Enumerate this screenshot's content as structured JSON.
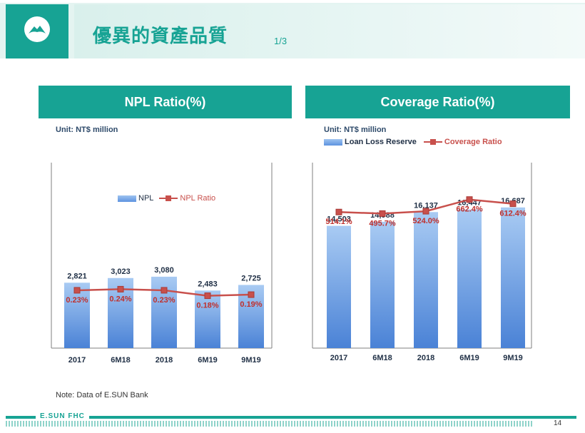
{
  "header": {
    "logo_icon": "mountain-logo-icon",
    "title": "優異的資產品質",
    "title_suffix": "1/3"
  },
  "colors": {
    "brand": "#17a394",
    "bar": "#5d93e0",
    "line": "#c8504c"
  },
  "left_panel": {
    "heading": "NPL Ratio(%)",
    "unit": "Unit: NT$ million",
    "legend_bar": "NPL",
    "legend_line": "NPL Ratio"
  },
  "right_panel": {
    "heading": "Coverage Ratio(%)",
    "unit": "Unit: NT$ million",
    "legend_bar": "Loan Loss Reserve",
    "legend_line": "Coverage Ratio"
  },
  "chart_data": [
    {
      "type": "bar",
      "categories": [
        "2017",
        "6M18",
        "2018",
        "6M19",
        "9M19"
      ],
      "bar_labels": [
        "2,821",
        "3,023",
        "3,080",
        "2,483",
        "2,725"
      ],
      "line_labels": [
        "0.23%",
        "0.24%",
        "0.23%",
        "0.18%",
        "0.19%"
      ],
      "series": [
        {
          "name": "NPL",
          "kind": "bar",
          "values": [
            2821,
            3023,
            3080,
            2483,
            2725
          ]
        },
        {
          "name": "NPL Ratio",
          "kind": "line",
          "values": [
            0.23,
            0.24,
            0.23,
            0.18,
            0.19
          ]
        }
      ],
      "title": "NPL Ratio(%)",
      "bar_ylim": [
        0,
        8000
      ],
      "line_ylim": [
        -0.3,
        1.4
      ],
      "legend": "top-center"
    },
    {
      "type": "bar",
      "categories": [
        "2017",
        "6M18",
        "2018",
        "6M19",
        "9M19"
      ],
      "bar_labels": [
        "14,503",
        "14,988",
        "16,137",
        "16,447",
        "16,687"
      ],
      "line_labels": [
        "514.1%",
        "495.7%",
        "524.0%",
        "662.4%",
        "612.4%"
      ],
      "series": [
        {
          "name": "Loan Loss Reserve",
          "kind": "bar",
          "values": [
            14503,
            14988,
            16137,
            16447,
            16687
          ]
        },
        {
          "name": "Coverage Ratio",
          "kind": "line",
          "values": [
            514.1,
            495.7,
            524.0,
            662.4,
            612.4
          ]
        }
      ],
      "title": "Coverage Ratio(%)",
      "bar_ylim": [
        0,
        22000
      ],
      "line_ylim": [
        -1100,
        1100
      ],
      "legend": "top-left"
    }
  ],
  "footnote": "Note: Data of E.SUN Bank",
  "footer": {
    "brand": "E.SUN FHC",
    "page_number": "14"
  }
}
